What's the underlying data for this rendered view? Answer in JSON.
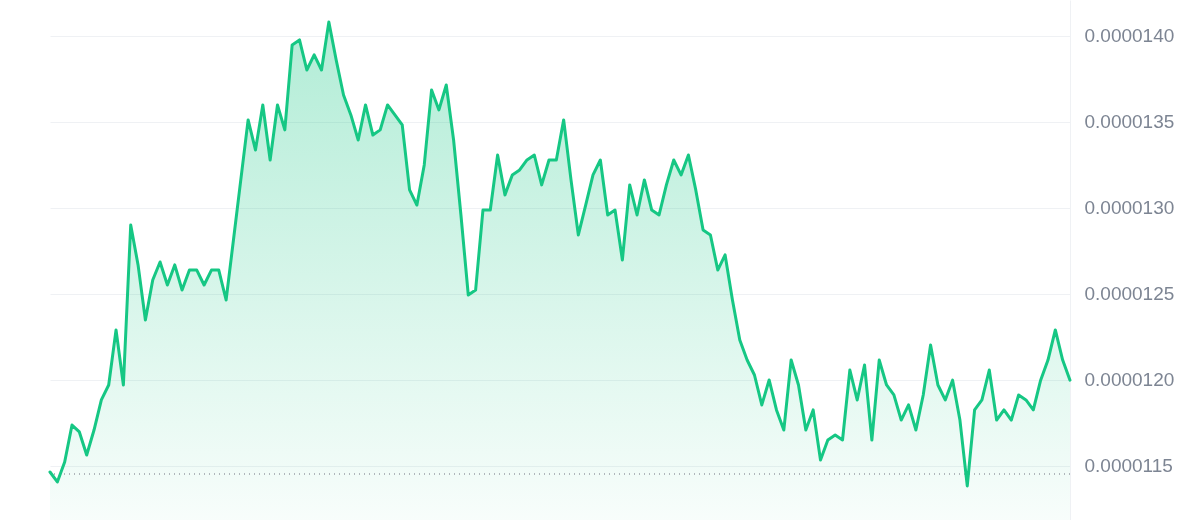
{
  "chart_data": {
    "type": "area",
    "ylim": [
      1.1186e-05,
      1.4209e-05
    ],
    "yticks": [
      {
        "value": 1.15e-05,
        "label": "0.0000115"
      },
      {
        "value": 1.2e-05,
        "label": "0.0000120"
      },
      {
        "value": 1.25e-05,
        "label": "0.0000125"
      },
      {
        "value": 1.3e-05,
        "label": "0.0000130"
      },
      {
        "value": 1.35e-05,
        "label": "0.0000135"
      },
      {
        "value": 1.4e-05,
        "label": "0.0000140"
      }
    ],
    "tick_labels": "y",
    "grid": "y",
    "ref_lines": [
      {
        "axis": "y",
        "value": 1.1453e-05,
        "color": "#9aa0a8",
        "line_style": "dotted"
      }
    ],
    "categories": [
      null,
      null,
      null,
      null,
      null,
      null,
      null,
      null,
      null,
      null,
      null,
      null,
      null,
      null,
      null,
      null,
      null,
      null,
      null,
      null,
      null,
      null,
      null,
      null,
      null,
      null,
      null,
      null,
      null,
      null,
      null,
      null,
      null,
      null,
      null,
      null,
      null,
      null,
      null,
      null,
      null,
      null,
      null,
      null,
      null,
      null,
      null,
      null,
      null,
      null,
      null,
      null,
      null,
      null,
      null,
      null,
      null,
      null,
      null,
      null,
      null,
      null,
      null,
      null,
      null,
      null,
      null,
      null,
      null,
      null,
      null,
      null,
      null,
      null,
      null,
      null,
      null,
      null,
      null,
      null,
      null,
      null,
      null,
      null,
      null,
      null,
      null,
      null,
      null,
      null,
      null,
      null,
      null,
      null,
      null,
      null,
      null,
      null,
      null,
      null,
      null,
      null,
      null,
      null,
      null,
      null,
      null,
      null,
      null,
      null,
      null,
      null,
      null,
      null,
      null,
      null,
      null,
      null,
      null,
      null,
      null,
      null,
      null,
      null,
      null,
      null,
      null,
      null,
      null,
      null,
      null,
      null,
      null,
      null,
      null,
      null,
      null,
      null,
      null,
      null
    ],
    "series": [
      {
        "color": "#16c784",
        "values": [
          1.1465e-05,
          1.1407e-05,
          1.1523e-05,
          1.1738e-05,
          1.1698e-05,
          1.1564e-05,
          1.1709e-05,
          1.1884e-05,
          1.1971e-05,
          1.2291e-05,
          1.1971e-05,
          1.2901e-05,
          1.2669e-05,
          1.2349e-05,
          1.2581e-05,
          1.2686e-05,
          1.2552e-05,
          1.2669e-05,
          1.2523e-05,
          1.2639e-05,
          1.2639e-05,
          1.2552e-05,
          1.2639e-05,
          1.2639e-05,
          1.2465e-05,
          1.2814e-05,
          1.3163e-05,
          1.3512e-05,
          1.3337e-05,
          1.3599e-05,
          1.3279e-05,
          1.3599e-05,
          1.3454e-05,
          1.3948e-05,
          1.3977e-05,
          1.3802e-05,
          1.389e-05,
          1.3802e-05,
          1.4081e-05,
          1.386e-05,
          1.3657e-05,
          1.3541e-05,
          1.3395e-05,
          1.3599e-05,
          1.3424e-05,
          1.3454e-05,
          1.3599e-05,
          1.3541e-05,
          1.3483e-05,
          1.3105e-05,
          1.3017e-05,
          1.325e-05,
          1.3686e-05,
          1.357e-05,
          1.3715e-05,
          1.3395e-05,
          1.2959e-05,
          1.2494e-05,
          1.2523e-05,
          1.2988e-05,
          1.2988e-05,
          1.3308e-05,
          1.3076e-05,
          1.3192e-05,
          1.3221e-05,
          1.3279e-05,
          1.3308e-05,
          1.3134e-05,
          1.3279e-05,
          1.3279e-05,
          1.3512e-05,
          1.3163e-05,
          1.2843e-05,
          1.3017e-05,
          1.3192e-05,
          1.3279e-05,
          1.2959e-05,
          1.2988e-05,
          1.2698e-05,
          1.3134e-05,
          1.2959e-05,
          1.3163e-05,
          1.2988e-05,
          1.2959e-05,
          1.3134e-05,
          1.3279e-05,
          1.3192e-05,
          1.3308e-05,
          1.3105e-05,
          1.2872e-05,
          1.2843e-05,
          1.2639e-05,
          1.2727e-05,
          1.2465e-05,
          1.2232e-05,
          1.2116e-05,
          1.2029e-05,
          1.1855e-05,
          1.2e-05,
          1.1826e-05,
          1.1709e-05,
          1.2116e-05,
          1.1971e-05,
          1.1709e-05,
          1.1826e-05,
          1.1535e-05,
          1.1651e-05,
          1.168e-05,
          1.1651e-05,
          1.2058e-05,
          1.1884e-05,
          1.2087e-05,
          1.1651e-05,
          1.2116e-05,
          1.1971e-05,
          1.1913e-05,
          1.1767e-05,
          1.1855e-05,
          1.1709e-05,
          1.1913e-05,
          1.2203e-05,
          1.1971e-05,
          1.1884e-05,
          1.1999e-05,
          1.1767e-05,
          1.1384e-05,
          1.1826e-05,
          1.1884e-05,
          1.2058e-05,
          1.1767e-05,
          1.1826e-05,
          1.1767e-05,
          1.1913e-05,
          1.1884e-05,
          1.1826e-05,
          1.1999e-05,
          1.2116e-05,
          1.2291e-05,
          1.2116e-05,
          1.1999e-05
        ]
      }
    ]
  }
}
